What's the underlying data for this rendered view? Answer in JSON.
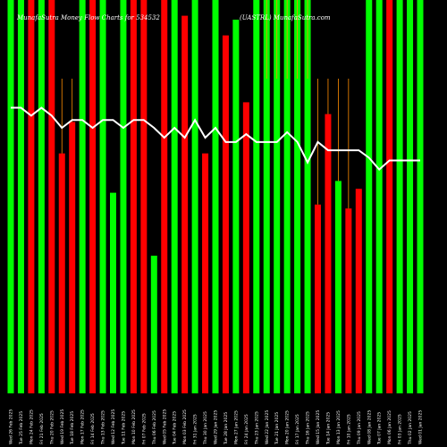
{
  "chart_data": {
    "type": "bar",
    "title": "MunafaSutra Money Flow Charts for 534532",
    "title_right": "(UASTRL) MunafaSutra.com",
    "colors": {
      "up": "#00ff00",
      "down": "#ff0000",
      "line": "#ffffff",
      "wick": "#ff8c00",
      "background": "#000000"
    },
    "ylim": [
      0,
      100
    ],
    "bars": [
      {
        "date": "Wed 26 Feb",
        "value": 100,
        "color": "green"
      },
      {
        "date": "Tue 25 Feb",
        "value": 100,
        "color": "green"
      },
      {
        "date": "Mon 24 Feb",
        "value": 100,
        "color": "red"
      },
      {
        "date": "Fri 21 Feb",
        "value": 100,
        "color": "green"
      },
      {
        "date": "Thu 20 Feb",
        "value": 100,
        "color": "red"
      },
      {
        "date": "Wed 19 Feb",
        "value": 61,
        "color": "red",
        "wick": 80
      },
      {
        "date": "Tue 18 Feb",
        "value": 69,
        "color": "red",
        "wick": 80
      },
      {
        "date": "Mon 17 Feb",
        "value": 100,
        "color": "green"
      },
      {
        "date": "Fri 14 Feb",
        "value": 100,
        "color": "red"
      },
      {
        "date": "Thu 13 Feb",
        "value": 100,
        "color": "green"
      },
      {
        "date": "Wed 12 Feb",
        "value": 51,
        "color": "green"
      },
      {
        "date": "Tue 11 Feb",
        "value": 100,
        "color": "green"
      },
      {
        "date": "Mon 10 Feb",
        "value": 100,
        "color": "red"
      },
      {
        "date": "Fri 07 Feb",
        "value": 100,
        "color": "red"
      },
      {
        "date": "Thu 06 Feb",
        "value": 35,
        "color": "green"
      },
      {
        "date": "Wed 05 Feb",
        "value": 100,
        "color": "red"
      },
      {
        "date": "Tue 04 Feb",
        "value": 100,
        "color": "green"
      },
      {
        "date": "Mon 03 Feb",
        "value": 96,
        "color": "red"
      },
      {
        "date": "Fri 31 Jan",
        "value": 100,
        "color": "green"
      },
      {
        "date": "Thu 30 Jan",
        "value": 61,
        "color": "red"
      },
      {
        "date": "Wed 29 Jan",
        "value": 100,
        "color": "green"
      },
      {
        "date": "Tue 28 Jan",
        "value": 91,
        "color": "red"
      },
      {
        "date": "Mon 27 Jan",
        "value": 95,
        "color": "green"
      },
      {
        "date": "Fri 24 Jan",
        "value": 74,
        "color": "red"
      },
      {
        "date": "Thu 23 Jan",
        "value": 100,
        "color": "green"
      },
      {
        "date": "Wed 22 Jan",
        "value": 100,
        "color": "green",
        "wick": 80
      },
      {
        "date": "Tue 21 Jan",
        "value": 100,
        "color": "green",
        "wick": 80
      },
      {
        "date": "Mon 20 Jan",
        "value": 100,
        "color": "green",
        "wick": 80
      },
      {
        "date": "Fri 17 Jan",
        "value": 100,
        "color": "green",
        "wick": 80
      },
      {
        "date": "Thu 16 Jan",
        "value": 100,
        "color": "green",
        "wick": 80
      },
      {
        "date": "Wed 15 Jan",
        "value": 48,
        "color": "red",
        "wick": 80
      },
      {
        "date": "Tue 14 Jan",
        "value": 71,
        "color": "red",
        "wick": 80
      },
      {
        "date": "Mon 13 Jan",
        "value": 54,
        "color": "green",
        "wick": 80
      },
      {
        "date": "Fri 10 Jan",
        "value": 47,
        "color": "red",
        "wick": 80
      },
      {
        "date": "Thu 09 Jan",
        "value": 52,
        "color": "red"
      },
      {
        "date": "Wed 08 Jan",
        "value": 100,
        "color": "green"
      },
      {
        "date": "Tue 07 Jan",
        "value": 100,
        "color": "green"
      },
      {
        "date": "Mon 06 Jan",
        "value": 100,
        "color": "red"
      },
      {
        "date": "Fri 03 Jan",
        "value": 100,
        "color": "green"
      },
      {
        "date": "Thu 02 Jan",
        "value": 100,
        "color": "green"
      },
      {
        "date": "Wed 01 Jan",
        "value": 100,
        "color": "green"
      }
    ],
    "line": [
      72.6,
      72.6,
      70.6,
      72.6,
      70.6,
      67.5,
      69.5,
      69.5,
      67.5,
      69.5,
      69.5,
      67.5,
      69.5,
      69.5,
      67.5,
      65.0,
      67.5,
      65.0,
      69.5,
      65.0,
      67.5,
      63.9,
      63.9,
      65.9,
      63.9,
      63.9,
      63.9,
      66.4,
      63.9,
      58.7,
      63.9,
      61.8,
      61.8,
      61.8,
      61.8,
      59.9,
      56.9,
      59.2,
      59.2,
      59.2,
      59.2
    ]
  },
  "x_tick_labels": [
    "Wed 26 Feb 2025",
    "Tue 25 Feb 2025",
    "Mon 24 Feb 2025",
    "Fri 21 Feb 2025",
    "Thu 20 Feb 2025",
    "Wed 19 Feb 2025",
    "Tue 18 Feb 2025",
    "Mon 17 Feb 2025",
    "Fri 14 Feb 2025",
    "Thu 13 Feb 2025",
    "Wed 12 Feb 2025",
    "Tue 11 Feb 2025",
    "Mon 10 Feb 2025",
    "Fri 07 Feb 2025",
    "Thu 06 Feb 2025",
    "Wed 05 Feb 2025",
    "Tue 04 Feb 2025",
    "Mon 03 Feb 2025",
    "Fri 31 Jan 2025",
    "Thu 30 Jan 2025",
    "Wed 29 Jan 2025",
    "Tue 28 Jan 2025",
    "Mon 27 Jan 2025",
    "Fri 24 Jan 2025",
    "Thu 23 Jan 2025",
    "Wed 22 Jan 2025",
    "Tue 21 Jan 2025",
    "Mon 20 Jan 2025",
    "Fri 17 Jan 2025",
    "Thu 16 Jan 2025",
    "Wed 15 Jan 2025",
    "Tue 14 Jan 2025",
    "Mon 13 Jan 2025",
    "Fri 10 Jan 2025",
    "Thu 09 Jan 2025",
    "Wed 08 Jan 2025",
    "Tue 07 Jan 2025",
    "Mon 06 Jan 2025",
    "Fri 03 Jan 2025",
    "Thu 02 Jan 2025",
    "Wed 01 Jan 2025"
  ]
}
